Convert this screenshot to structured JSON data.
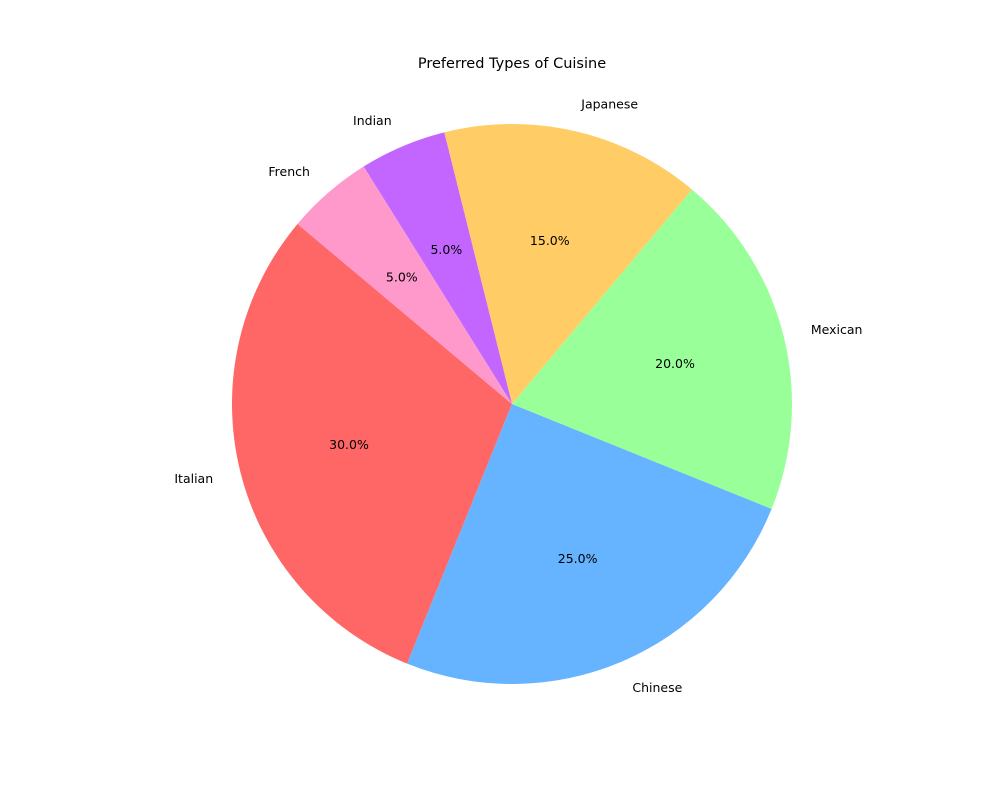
{
  "chart_data": {
    "type": "pie",
    "title": "Preferred Types of Cuisine",
    "categories": [
      "Italian",
      "Chinese",
      "Mexican",
      "Japanese",
      "Indian",
      "French"
    ],
    "values": [
      30,
      25,
      20,
      15,
      5,
      5
    ],
    "percent_labels": [
      "30.0%",
      "25.0%",
      "20.0%",
      "15.0%",
      "5.0%",
      "5.0%"
    ],
    "colors": [
      "#ff6666",
      "#66b3ff",
      "#99ff99",
      "#ffcc66",
      "#c266ff",
      "#ff99cc"
    ],
    "start_angle_deg": 140,
    "direction": "counterclockwise",
    "legend": "none"
  }
}
